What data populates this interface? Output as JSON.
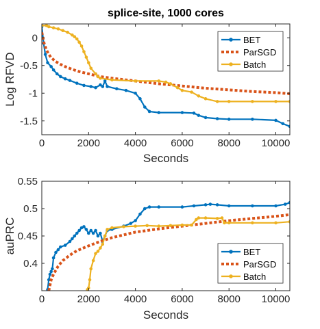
{
  "chart_data": [
    {
      "type": "line",
      "title": "splice-site, 1000 cores",
      "xlabel": "Seconds",
      "ylabel": "Log RFVD",
      "xlim": [
        0,
        10600
      ],
      "ylim": [
        -1.75,
        0.25
      ],
      "xticks": [
        0,
        2000,
        4000,
        6000,
        8000,
        10000
      ],
      "yticks": [
        0,
        -0.5,
        -1,
        -1.5
      ],
      "ytick_labels": [
        "0",
        "-0.5",
        "-1",
        "-1.5"
      ],
      "grid": false,
      "legend": "top-right",
      "series": [
        {
          "name": "BET",
          "color": "#0072BD",
          "style": "solid-dotted-markers",
          "x": [
            0,
            80,
            150,
            250,
            400,
            500,
            650,
            800,
            1000,
            1200,
            1500,
            1800,
            2100,
            2300,
            2500,
            2600,
            2700,
            2800,
            3200,
            3600,
            4000,
            4200,
            4400,
            4600,
            5000,
            6000,
            6500,
            6700,
            7000,
            7500,
            8000,
            9000,
            10000,
            10300,
            10600
          ],
          "y": [
            0.2,
            -0.1,
            -0.3,
            -0.45,
            -0.52,
            -0.58,
            -0.65,
            -0.7,
            -0.74,
            -0.77,
            -0.82,
            -0.86,
            -0.88,
            -0.9,
            -0.85,
            -0.88,
            -0.78,
            -0.88,
            -0.92,
            -0.95,
            -1.0,
            -1.1,
            -1.25,
            -1.33,
            -1.35,
            -1.35,
            -1.36,
            -1.4,
            -1.44,
            -1.46,
            -1.47,
            -1.47,
            -1.49,
            -1.55,
            -1.6
          ]
        },
        {
          "name": "ParSGD",
          "color": "#D95319",
          "style": "dotted-thick",
          "x": [
            0,
            100,
            200,
            300,
            400,
            600,
            800,
            1000,
            1300,
            1600,
            2000,
            2500,
            3000,
            4000,
            5000,
            6000,
            7000,
            8000,
            9000,
            10000,
            10600
          ],
          "y": [
            0.1,
            -0.1,
            -0.22,
            -0.3,
            -0.36,
            -0.43,
            -0.48,
            -0.52,
            -0.57,
            -0.61,
            -0.65,
            -0.7,
            -0.73,
            -0.78,
            -0.83,
            -0.87,
            -0.91,
            -0.94,
            -0.97,
            -0.99,
            -1.01
          ]
        },
        {
          "name": "Batch",
          "color": "#EDB120",
          "style": "solid-dotted-markers",
          "x": [
            0,
            200,
            300,
            500,
            700,
            900,
            1100,
            1300,
            1400,
            1500,
            1600,
            1700,
            1800,
            1900,
            2000,
            2100,
            2300,
            2400,
            2500,
            3000,
            4000,
            5000,
            5300,
            5500,
            5800,
            6000,
            6400,
            6700,
            7000,
            7500,
            8000,
            9000,
            10000,
            10600
          ],
          "y": [
            0.22,
            0.22,
            0.2,
            0.18,
            0.16,
            0.13,
            0.1,
            0.05,
            0.02,
            -0.02,
            -0.08,
            -0.15,
            -0.25,
            -0.35,
            -0.45,
            -0.55,
            -0.65,
            -0.7,
            -0.73,
            -0.76,
            -0.78,
            -0.78,
            -0.8,
            -0.83,
            -0.9,
            -0.95,
            -0.98,
            -1.05,
            -1.1,
            -1.15,
            -1.15,
            -1.15,
            -1.15,
            -1.15
          ]
        }
      ]
    },
    {
      "type": "line",
      "title": "",
      "xlabel": "Seconds",
      "ylabel": "auPRC",
      "xlim": [
        0,
        10600
      ],
      "ylim": [
        0.35,
        0.55
      ],
      "xticks": [
        0,
        2000,
        4000,
        6000,
        8000,
        10000
      ],
      "yticks": [
        0.55,
        0.5,
        0.45,
        0.4
      ],
      "ytick_labels": [
        "0.55",
        "0.5",
        "0.45",
        "0.4"
      ],
      "grid": false,
      "legend": "bottom-right",
      "series": [
        {
          "name": "BET",
          "color": "#0072BD",
          "style": "solid-dotted-markers",
          "x": [
            250,
            300,
            350,
            400,
            450,
            500,
            600,
            700,
            800,
            1000,
            1200,
            1300,
            1400,
            1500,
            1600,
            1700,
            1800,
            1900,
            2000,
            2100,
            2200,
            2300,
            2400,
            2500,
            2600,
            2700,
            2800,
            3000,
            3500,
            3800,
            4000,
            4200,
            4400,
            4600,
            5000,
            6000,
            6500,
            7000,
            7200,
            7500,
            8000,
            9000,
            10000,
            10400,
            10600
          ],
          "y": [
            0.352,
            0.37,
            0.38,
            0.385,
            0.39,
            0.41,
            0.42,
            0.425,
            0.43,
            0.433,
            0.44,
            0.445,
            0.45,
            0.455,
            0.46,
            0.465,
            0.467,
            0.462,
            0.455,
            0.46,
            0.455,
            0.46,
            0.45,
            0.455,
            0.44,
            0.45,
            0.46,
            0.462,
            0.468,
            0.473,
            0.478,
            0.49,
            0.5,
            0.503,
            0.503,
            0.503,
            0.505,
            0.507,
            0.508,
            0.507,
            0.505,
            0.505,
            0.505,
            0.508,
            0.511
          ]
        },
        {
          "name": "ParSGD",
          "color": "#D95319",
          "style": "dotted-thick",
          "x": [
            300,
            400,
            500,
            700,
            900,
            1200,
            1500,
            2000,
            2500,
            3000,
            4000,
            5000,
            6000,
            7000,
            8000,
            9000,
            10000,
            10600
          ],
          "y": [
            0.35,
            0.37,
            0.38,
            0.395,
            0.405,
            0.415,
            0.423,
            0.432,
            0.44,
            0.447,
            0.457,
            0.463,
            0.468,
            0.473,
            0.478,
            0.482,
            0.486,
            0.489
          ]
        },
        {
          "name": "Batch",
          "color": "#EDB120",
          "style": "solid-dotted-markers",
          "x": [
            1950,
            2000,
            2050,
            2100,
            2200,
            2300,
            2400,
            2500,
            2600,
            2700,
            2800,
            3000,
            3500,
            4000,
            4500,
            5000,
            5500,
            6000,
            6400,
            6600,
            6700,
            7000,
            7500,
            7700,
            7800,
            8000,
            9000,
            10000,
            10600
          ],
          "y": [
            0.352,
            0.355,
            0.37,
            0.39,
            0.405,
            0.418,
            0.422,
            0.428,
            0.435,
            0.45,
            0.462,
            0.465,
            0.467,
            0.468,
            0.469,
            0.468,
            0.469,
            0.47,
            0.47,
            0.48,
            0.483,
            0.483,
            0.482,
            0.483,
            0.474,
            0.474,
            0.474,
            0.474,
            0.476
          ]
        }
      ]
    }
  ]
}
